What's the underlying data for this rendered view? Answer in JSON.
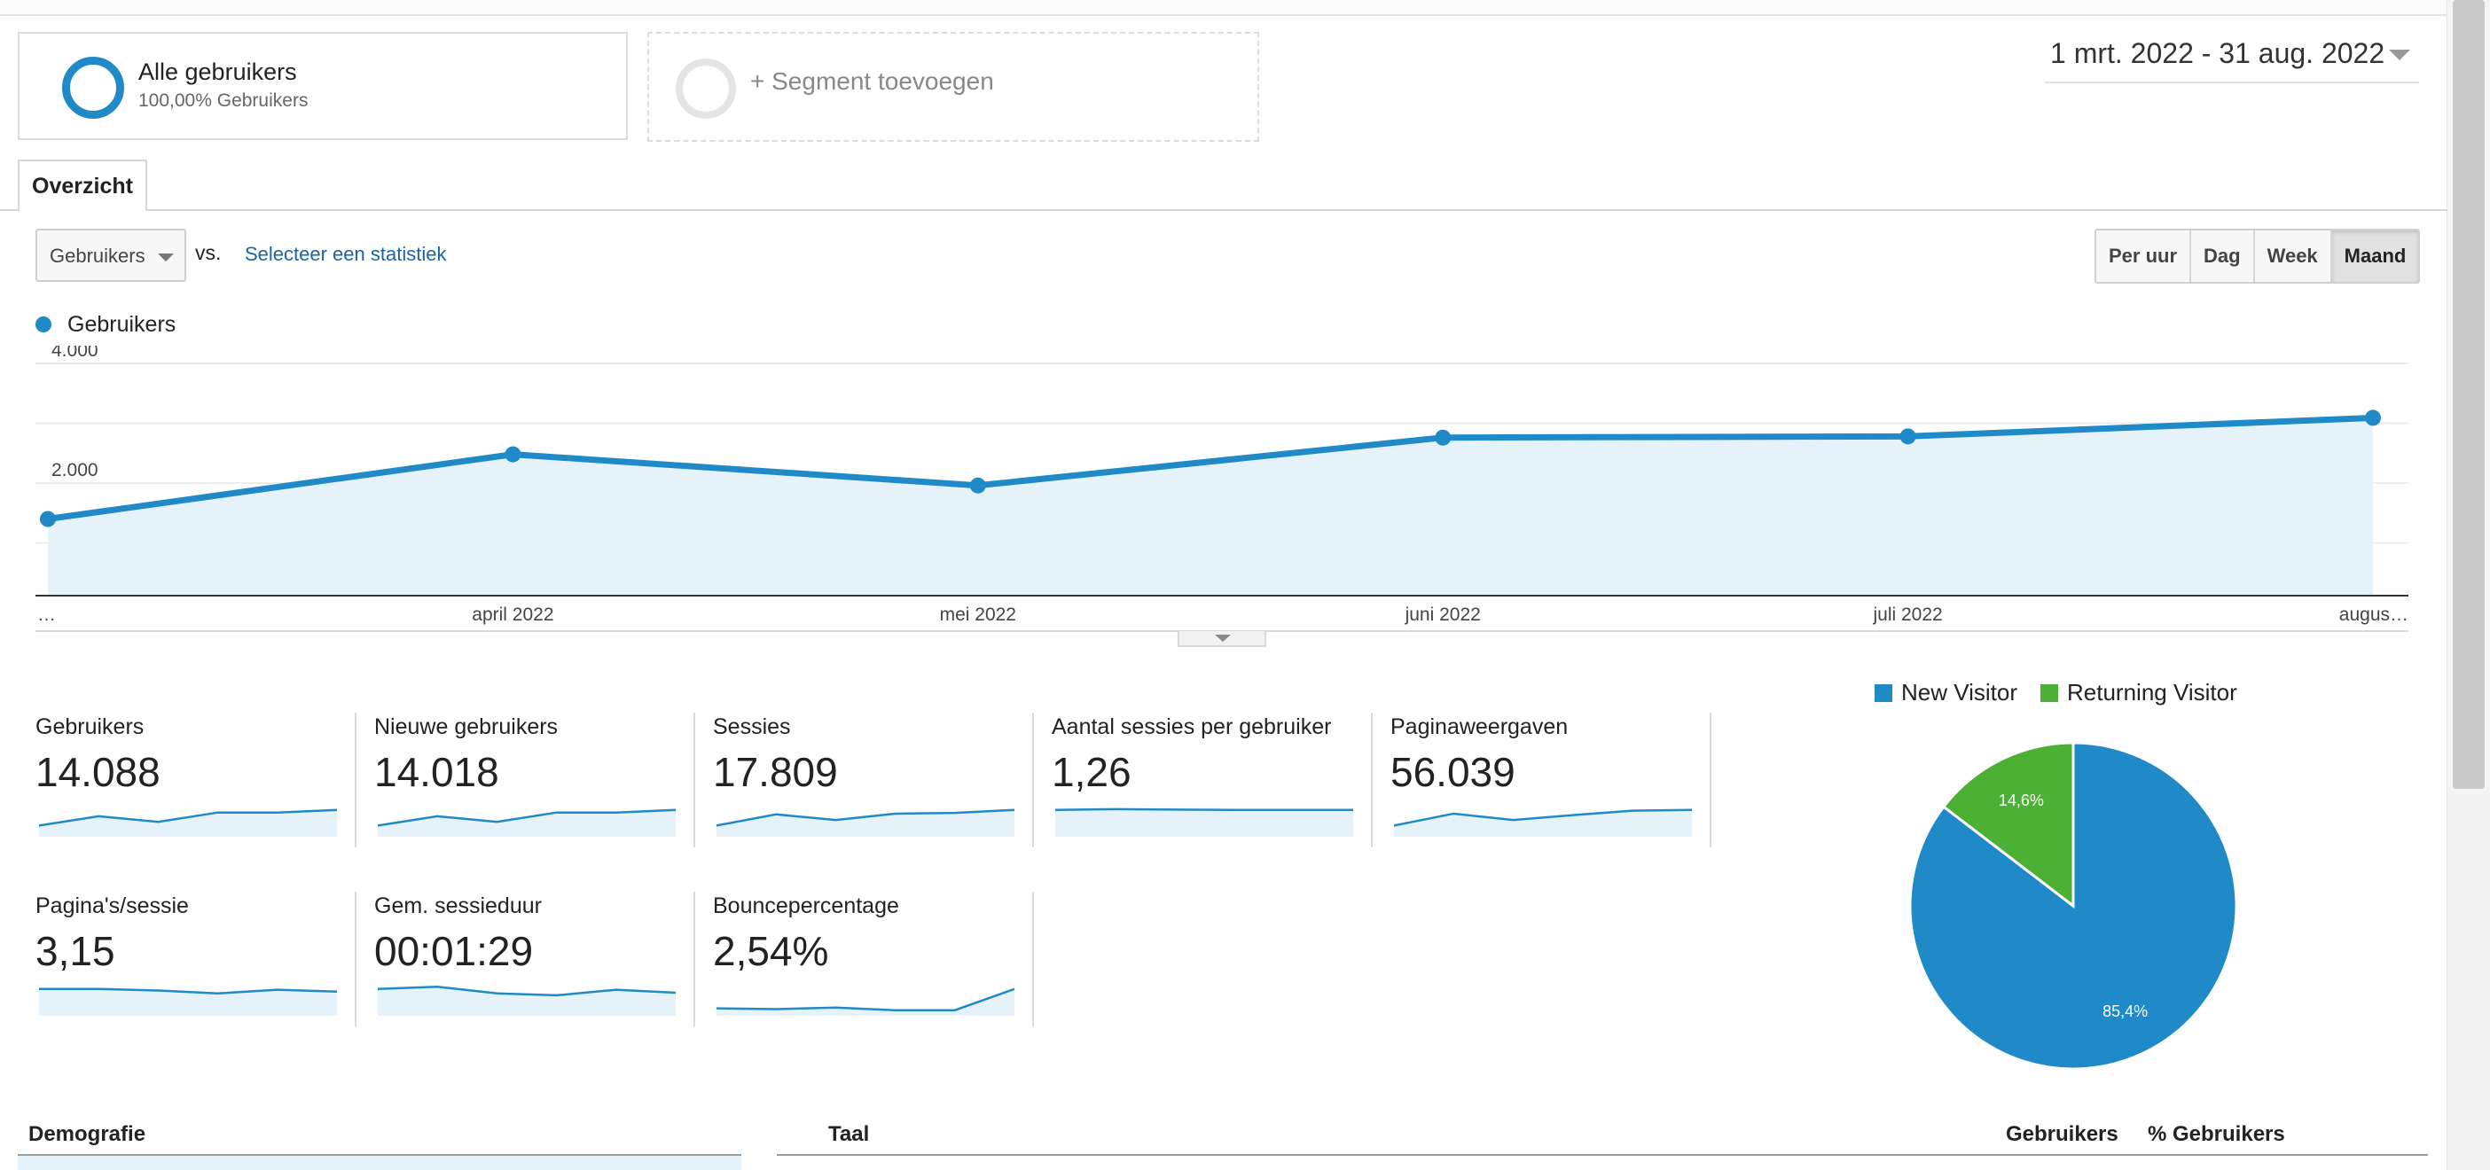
{
  "segments": {
    "active_title": "Alle gebruikers",
    "active_sub": "100,00% Gebruikers",
    "add_label": "+ Segment toevoegen"
  },
  "date_range": "1 mrt. 2022 - 31 aug. 2022",
  "tabs": {
    "overview": "Overzicht"
  },
  "metric_picker": {
    "selected": "Gebruikers",
    "vs": "vs.",
    "compare_link": "Selecteer een statistiek"
  },
  "granularity": {
    "options": [
      "Per uur",
      "Dag",
      "Week",
      "Maand"
    ],
    "active": "Maand"
  },
  "chart_data": {
    "type": "area",
    "legend": [
      "Gebruikers"
    ],
    "x_tick_labels": [
      "…",
      "april 2022",
      "mei 2022",
      "juni 2022",
      "juli 2022",
      "augus…"
    ],
    "y_tick_labels": [
      "4.000",
      "2.000"
    ],
    "y_ticks": [
      4000,
      2000
    ],
    "ylim": [
      0,
      4000
    ],
    "series": [
      {
        "name": "Gebruikers",
        "values": [
          1400,
          2480,
          1960,
          2760,
          2780,
          3090
        ]
      }
    ],
    "color": "#1f8ac7",
    "fill": "#e5f2f9",
    "grid": true
  },
  "stats": [
    {
      "label": "Gebruikers",
      "value": "14.088",
      "spark": [
        0.3,
        0.55,
        0.4,
        0.65,
        0.65,
        0.72
      ]
    },
    {
      "label": "Nieuwe gebruikers",
      "value": "14.018",
      "spark": [
        0.3,
        0.55,
        0.4,
        0.65,
        0.65,
        0.72
      ]
    },
    {
      "label": "Sessies",
      "value": "17.809",
      "spark": [
        0.3,
        0.6,
        0.45,
        0.62,
        0.64,
        0.72
      ]
    },
    {
      "label": "Aantal sessies per gebruiker",
      "value": "1,26",
      "spark": [
        0.72,
        0.74,
        0.73,
        0.72,
        0.72,
        0.72
      ]
    },
    {
      "label": "Paginaweergaven",
      "value": "56.039",
      "spark": [
        0.3,
        0.62,
        0.45,
        0.58,
        0.7,
        0.72
      ]
    },
    {
      "label": "Pagina's/sessie",
      "value": "3,15",
      "spark": [
        0.72,
        0.72,
        0.68,
        0.6,
        0.7,
        0.65
      ]
    },
    {
      "label": "Gem. sessieduur",
      "value": "00:01:29",
      "spark": [
        0.72,
        0.78,
        0.6,
        0.55,
        0.7,
        0.62
      ]
    },
    {
      "label": "Bouncepercentage",
      "value": "2,54%",
      "spark": [
        0.2,
        0.18,
        0.22,
        0.15,
        0.15,
        0.72
      ]
    }
  ],
  "pie": {
    "legend": [
      {
        "label": "New Visitor",
        "color": "#1f8ac7",
        "value": 85.4,
        "value_label": "85,4%"
      },
      {
        "label": "Returning Visitor",
        "color": "#4cb034",
        "value": 14.6,
        "value_label": "14,6%"
      }
    ]
  },
  "tables": {
    "demographics_title": "Demografie",
    "language_title": "Taal",
    "col_users": "Gebruikers",
    "col_pct_users": "% Gebruikers"
  },
  "colors": {
    "accent": "#1f8ac7",
    "link": "#1a64a8",
    "returning": "#4cb034"
  }
}
